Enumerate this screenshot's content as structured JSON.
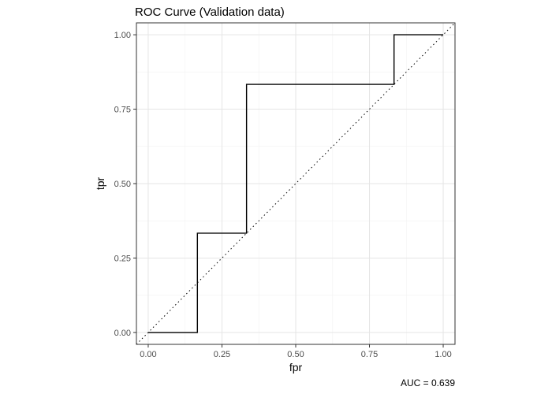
{
  "chart_data": {
    "type": "line",
    "title": "ROC Curve (Validation data)",
    "xlabel": "fpr",
    "ylabel": "tpr",
    "caption": "AUC = 0.639",
    "xlim": [
      -0.04,
      1.04
    ],
    "ylim": [
      -0.04,
      1.04
    ],
    "xticks": [
      0,
      0.25,
      0.5,
      0.75,
      1
    ],
    "xtick_labels": [
      "0.00",
      "0.25",
      "0.50",
      "0.75",
      "1.00"
    ],
    "yticks": [
      0,
      0.25,
      0.5,
      0.75,
      1
    ],
    "ytick_labels": [
      "0.00",
      "0.25",
      "0.50",
      "0.75",
      "1.00"
    ],
    "grid": true,
    "series": [
      {
        "line_style": "solid",
        "color": "#000000",
        "x": [
          0,
          0.1667,
          0.1667,
          0.3333,
          0.3333,
          0.8333,
          0.8333,
          1.0
        ],
        "y": [
          0,
          0,
          0.3333,
          0.3333,
          0.8333,
          0.8333,
          1.0,
          1.0
        ]
      },
      {
        "line_style": "dotted",
        "color": "#000000",
        "x": [
          -0.04,
          1.04
        ],
        "y": [
          -0.04,
          1.04
        ]
      }
    ]
  }
}
